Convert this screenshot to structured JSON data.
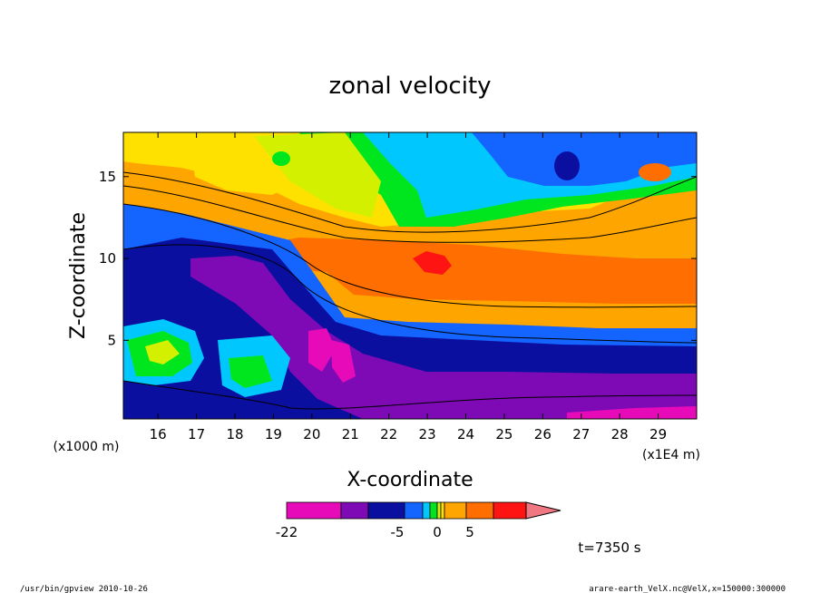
{
  "chart_data": {
    "type": "heatmap",
    "title": "zonal velocity",
    "xlabel": "X-coordinate",
    "ylabel": "Z-coordinate",
    "x_unit_left": "(x1000 m)",
    "x_unit_right": "(x1E4 m)",
    "xlim": [
      15.1,
      30.0
    ],
    "ylim": [
      0.2,
      17.7
    ],
    "x_ticks": [
      "16",
      "17",
      "18",
      "19",
      "20",
      "21",
      "22",
      "23",
      "24",
      "25",
      "26",
      "27",
      "28",
      "29"
    ],
    "y_ticks": [
      "5",
      "10",
      "15"
    ],
    "time_label": "t=7350 s",
    "colorbar": {
      "tick_labels": [
        "-22",
        "-5",
        "0",
        "5"
      ],
      "colors": [
        "#e60ab9",
        "#7d0ab4",
        "#0a0fa0",
        "#1464ff",
        "#00c8ff",
        "#00e61e",
        "#d2f000",
        "#ffe100",
        "#ffa500",
        "#ff6e00",
        "#ff1414",
        "#f07882"
      ]
    },
    "field_description_values": {
      "levels": [
        -22,
        -16,
        -10,
        -5,
        -3,
        -1,
        0,
        1,
        3,
        5,
        7,
        10
      ]
    }
  },
  "footer": {
    "left": "/usr/bin/gpview   2010-10-26",
    "right": "arare-earth_VelX.nc@VelX,x=150000:300000"
  }
}
